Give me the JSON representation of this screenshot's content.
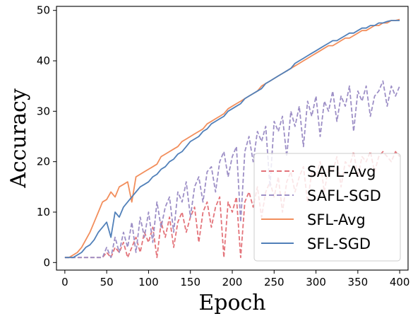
{
  "chart_data": {
    "type": "line",
    "title": "",
    "xlabel": "Epoch",
    "ylabel": "Accuracy",
    "xlim": [
      -10,
      410
    ],
    "ylim": [
      -1.5,
      50.8
    ],
    "xticks": [
      0,
      50,
      100,
      150,
      200,
      250,
      300,
      350,
      400
    ],
    "yticks": [
      0,
      10,
      20,
      30,
      40,
      50
    ],
    "legend_position": "lower-right",
    "grid": false,
    "series": [
      {
        "name": "SAFL-Avg",
        "color": "#e3737a",
        "style": "dashed",
        "x": [
          0,
          5,
          10,
          15,
          20,
          25,
          30,
          35,
          40,
          45,
          50,
          55,
          60,
          65,
          70,
          75,
          80,
          85,
          90,
          95,
          100,
          105,
          110,
          115,
          120,
          125,
          130,
          135,
          140,
          145,
          150,
          155,
          160,
          165,
          170,
          175,
          180,
          185,
          190,
          195,
          200,
          205,
          210,
          215,
          220,
          225,
          230,
          235,
          240,
          245,
          250,
          255,
          260,
          265,
          270,
          275,
          280,
          285,
          290,
          295,
          300,
          305,
          310,
          315,
          320,
          325,
          330,
          335,
          340,
          345,
          350,
          355,
          360,
          365,
          370,
          375,
          380,
          385,
          390,
          395,
          400
        ],
        "y": [
          1,
          1,
          1,
          1,
          1,
          1,
          1,
          1,
          1,
          1,
          2,
          1,
          3,
          2,
          4,
          1,
          3,
          5,
          2,
          6,
          4,
          7,
          1,
          8,
          5,
          9,
          3,
          8,
          10,
          6,
          9,
          11,
          4,
          10,
          12,
          7,
          11,
          13,
          1,
          12,
          10,
          13,
          1,
          12,
          14,
          11,
          15,
          9,
          14,
          16,
          13,
          17,
          10,
          16,
          18,
          14,
          17,
          19,
          12,
          18,
          17,
          20,
          14,
          19,
          18,
          21,
          15,
          20,
          19,
          22,
          17,
          21,
          20,
          22,
          18,
          21,
          22,
          21,
          20,
          22,
          21
        ]
      },
      {
        "name": "SAFL-SGD",
        "color": "#9d8fc6",
        "style": "dashed",
        "x": [
          0,
          5,
          10,
          15,
          20,
          25,
          30,
          35,
          40,
          45,
          50,
          55,
          60,
          65,
          70,
          75,
          80,
          85,
          90,
          95,
          100,
          105,
          110,
          115,
          120,
          125,
          130,
          135,
          140,
          145,
          150,
          155,
          160,
          165,
          170,
          175,
          180,
          185,
          190,
          195,
          200,
          205,
          210,
          215,
          220,
          225,
          230,
          235,
          240,
          245,
          250,
          255,
          260,
          265,
          270,
          275,
          280,
          285,
          290,
          295,
          300,
          305,
          310,
          315,
          320,
          325,
          330,
          335,
          340,
          345,
          350,
          355,
          360,
          365,
          370,
          375,
          380,
          385,
          390,
          395,
          400
        ],
        "y": [
          1,
          1,
          1,
          1,
          1,
          1,
          1,
          1,
          1,
          1,
          3,
          1,
          5,
          2,
          6,
          3,
          8,
          2,
          9,
          5,
          10,
          4,
          12,
          7,
          11,
          13,
          6,
          14,
          12,
          16,
          9,
          15,
          17,
          12,
          18,
          19,
          14,
          20,
          22,
          17,
          21,
          23,
          8,
          22,
          25,
          20,
          26,
          24,
          27,
          15,
          28,
          26,
          29,
          21,
          30,
          27,
          31,
          23,
          32,
          29,
          33,
          25,
          32,
          30,
          34,
          28,
          33,
          31,
          35,
          26,
          34,
          32,
          35,
          29,
          33,
          34,
          36,
          31,
          35,
          33,
          35
        ]
      },
      {
        "name": "SFL-Avg",
        "color": "#f28e5c",
        "style": "solid",
        "x": [
          0,
          5,
          10,
          15,
          20,
          25,
          30,
          35,
          40,
          45,
          50,
          55,
          60,
          65,
          70,
          75,
          80,
          85,
          90,
          95,
          100,
          105,
          110,
          115,
          120,
          125,
          130,
          135,
          140,
          145,
          150,
          155,
          160,
          165,
          170,
          175,
          180,
          185,
          190,
          195,
          200,
          205,
          210,
          215,
          220,
          225,
          230,
          235,
          240,
          245,
          250,
          255,
          260,
          265,
          270,
          275,
          280,
          285,
          290,
          295,
          300,
          305,
          310,
          315,
          320,
          325,
          330,
          335,
          340,
          345,
          350,
          355,
          360,
          365,
          370,
          375,
          380,
          385,
          390,
          395,
          400
        ],
        "y": [
          1,
          1,
          1.5,
          2,
          3,
          4.5,
          6,
          8,
          10,
          12,
          12.5,
          14,
          13,
          15,
          15.5,
          16,
          12,
          17,
          17.5,
          18,
          18.5,
          19,
          19.5,
          21,
          21.5,
          22,
          22.5,
          23,
          24,
          24.5,
          25,
          25.5,
          26,
          26.5,
          27.5,
          28,
          28.5,
          29,
          29.5,
          30.5,
          31,
          31.5,
          32,
          32.5,
          33,
          33.5,
          34,
          35,
          35.5,
          36,
          36.5,
          37,
          37.5,
          38,
          38.5,
          39,
          39.5,
          40,
          40.5,
          41,
          41.5,
          42,
          42.5,
          43,
          43,
          43.5,
          44,
          44.5,
          44.5,
          45,
          45.5,
          46,
          46,
          46.5,
          47,
          47,
          47.5,
          47.5,
          48,
          48,
          48.2
        ]
      },
      {
        "name": "SFL-SGD",
        "color": "#5180b9",
        "style": "solid",
        "x": [
          0,
          5,
          10,
          15,
          20,
          25,
          30,
          35,
          40,
          45,
          50,
          55,
          60,
          65,
          70,
          75,
          80,
          85,
          90,
          95,
          100,
          105,
          110,
          115,
          120,
          125,
          130,
          135,
          140,
          145,
          150,
          155,
          160,
          165,
          170,
          175,
          180,
          185,
          190,
          195,
          200,
          205,
          210,
          215,
          220,
          225,
          230,
          235,
          240,
          245,
          250,
          255,
          260,
          265,
          270,
          275,
          280,
          285,
          290,
          295,
          300,
          305,
          310,
          315,
          320,
          325,
          330,
          335,
          340,
          345,
          350,
          355,
          360,
          365,
          370,
          375,
          380,
          385,
          390,
          395,
          400
        ],
        "y": [
          1,
          1,
          1,
          1.5,
          2,
          3,
          3.5,
          4.5,
          6,
          7,
          8,
          5,
          10,
          9,
          11,
          12,
          13,
          14,
          15,
          15.5,
          16,
          17,
          17.5,
          18.5,
          19,
          20,
          20.5,
          21.5,
          22,
          23,
          24,
          24.5,
          25,
          26,
          26.5,
          27.5,
          28,
          28.5,
          29,
          30,
          30.5,
          31,
          31.5,
          32.5,
          33,
          33.5,
          34,
          34.5,
          35.5,
          36,
          36.5,
          37,
          37.5,
          38,
          38.5,
          39.5,
          40,
          40.5,
          41,
          41.5,
          42,
          42.5,
          43,
          43.5,
          44,
          44,
          44.5,
          45,
          45.5,
          45.5,
          46,
          46.5,
          46.5,
          47,
          47,
          47.5,
          47.5,
          47.8,
          48,
          48,
          48
        ]
      }
    ]
  }
}
